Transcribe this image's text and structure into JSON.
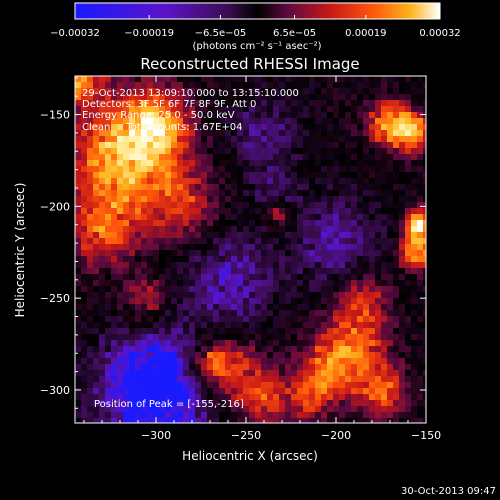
{
  "chart_data": {
    "type": "heatmap",
    "title": "Reconstructed RHESSI Image",
    "xlabel": "Heliocentric X (arcsec)",
    "ylabel": "Heliocentric Y (arcsec)",
    "xlim": [
      -345,
      -150
    ],
    "ylim": [
      -318,
      -129
    ],
    "x_ticks": [
      -300,
      -250,
      -200,
      -150
    ],
    "x_tick_labels": [
      "−300",
      "−250",
      "−200",
      "−150"
    ],
    "y_ticks": [
      -150,
      -200,
      -250,
      -300
    ],
    "y_tick_labels": [
      "−150",
      "−200",
      "−250",
      "−300"
    ],
    "colorbar": {
      "min": -0.00032,
      "max": 0.00032,
      "ticks": [
        -0.00032,
        -0.00019,
        -6.5e-05,
        6.5e-05,
        0.00019,
        0.00032
      ],
      "tick_labels": [
        "−0.00032",
        "−0.00019",
        "−6.5e−05",
        "6.5e−05",
        "0.00019",
        "0.00032"
      ],
      "units": "(photons cm⁻² s⁻¹ asec⁻²)",
      "colors": [
        "#1a1aff",
        "#5a14c8",
        "#3c0c50",
        "#000000",
        "#5a0a40",
        "#c81818",
        "#ff5a0a",
        "#ffb41e",
        "#fff0a0",
        "#ffffff"
      ]
    },
    "annotations": [
      "29-Oct-2013 13:09:10.000 to 13:15:10.000",
      "Detectors: 3F 5F 6F 7F 8F 9F, Att 0",
      "Energy Range: 25.0 - 50.0 keV",
      "Clean     Total counts: 1.67E+04"
    ],
    "peak_label": "Position of Peak = [-155,-216]",
    "peak_position": [
      -155,
      -216
    ],
    "grid": false
  },
  "footer": {
    "timestamp": "30-Oct-2013 09:47"
  }
}
